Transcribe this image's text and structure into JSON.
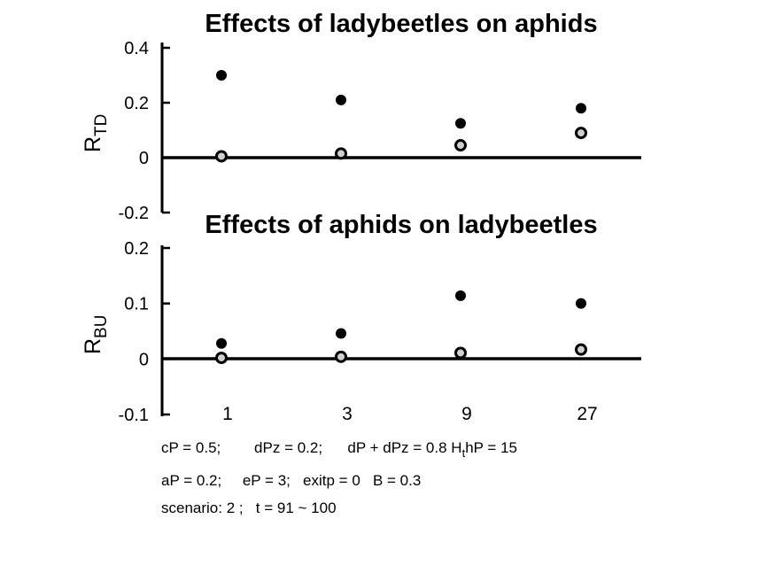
{
  "chart_data": [
    {
      "type": "scatter",
      "title": "Effects of ladybeetles on aphids",
      "ylabel_main": "R",
      "ylabel_sub": "TD",
      "ylim": [
        -0.2,
        0.4
      ],
      "yticks": [
        0.4,
        0.2,
        0,
        -0.2
      ],
      "ytick_labels": [
        "0.4",
        "0.2",
        "0",
        "-0.2"
      ],
      "categories": [
        "1",
        "3",
        "9",
        "27"
      ],
      "grid": false,
      "series": [
        {
          "marker": "filled-circle",
          "color": "#000000",
          "values": [
            0.3,
            0.21,
            0.125,
            0.18
          ]
        },
        {
          "marker": "open-circle",
          "color": "#000000",
          "values": [
            0.005,
            0.015,
            0.045,
            0.09
          ]
        }
      ]
    },
    {
      "type": "scatter",
      "title": "Effects of aphids on ladybeetles",
      "ylabel_main": "R",
      "ylabel_sub": "BU",
      "ylim": [
        -0.1,
        0.2
      ],
      "yticks": [
        0.2,
        0.1,
        0,
        -0.1
      ],
      "ytick_labels": [
        "0.2",
        "0.1",
        "0",
        "-0.1"
      ],
      "categories": [
        "1",
        "3",
        "9",
        "27"
      ],
      "grid": false,
      "series": [
        {
          "marker": "filled-circle",
          "color": "#000000",
          "values": [
            0.028,
            0.046,
            0.114,
            0.1
          ]
        },
        {
          "marker": "open-circle",
          "color": "#000000",
          "values": [
            0.002,
            0.004,
            0.011,
            0.017
          ]
        }
      ]
    }
  ],
  "notes": {
    "line1_a": "cP = 0.5;        dPz = 0.2;      dP + dPz = 0.8 H",
    "line1_sub": "t",
    "line1_b": "hP = 15",
    "line2": "aP = 0.2;     eP = 3;   exitp = 0   B = 0.3",
    "line3": "scenario: 2 ;   t = 91 ~ 100"
  }
}
